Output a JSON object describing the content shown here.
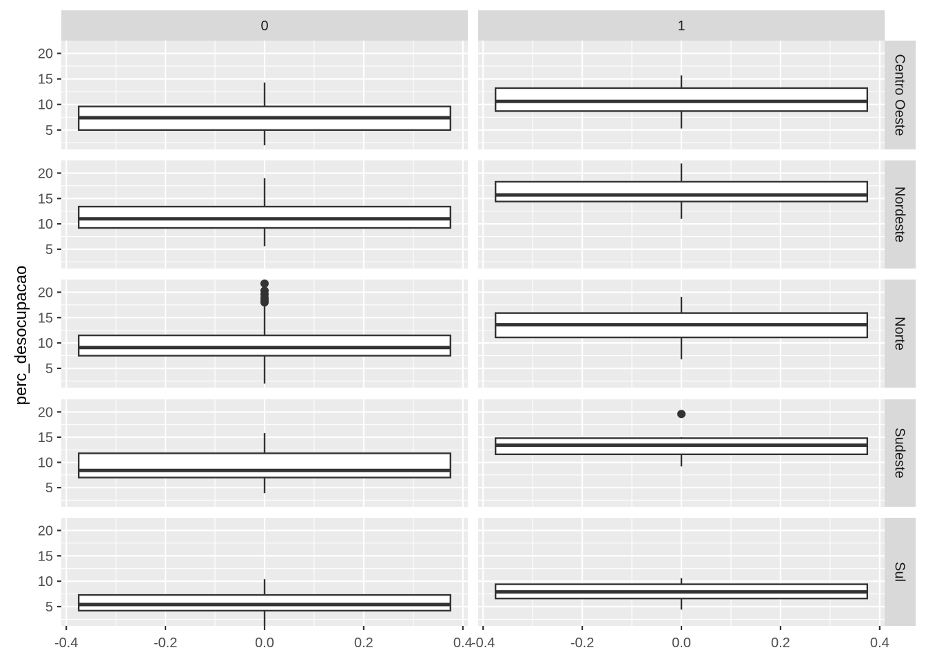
{
  "chart_data": {
    "type": "boxplot",
    "ylabel": "perc_desocupacao",
    "xlim": [
      -0.41,
      0.41
    ],
    "ylim": [
      1.2,
      22.5
    ],
    "x_ticks": [
      -0.4,
      -0.2,
      0.0,
      0.2,
      0.4
    ],
    "x_tick_labels": [
      "-0.4",
      "-0.2",
      "0.0",
      "0.2",
      "0.4"
    ],
    "y_ticks": [
      5,
      10,
      15,
      20
    ],
    "y_tick_labels": [
      "5",
      "10",
      "15",
      "20"
    ],
    "box_x_range": [
      -0.375,
      0.375
    ],
    "grid": true,
    "facet_columns": [
      "0",
      "1"
    ],
    "facet_rows": [
      "Centro Oeste",
      "Nordeste",
      "Norte",
      "Sudeste",
      "Sul"
    ],
    "boxes": [
      {
        "row": "Centro Oeste",
        "col": "0",
        "min": 2.0,
        "q1": 5.0,
        "median": 7.4,
        "q3": 9.6,
        "max": 14.3,
        "outliers": []
      },
      {
        "row": "Centro Oeste",
        "col": "1",
        "min": 5.3,
        "q1": 8.7,
        "median": 10.6,
        "q3": 13.2,
        "max": 15.7,
        "outliers": []
      },
      {
        "row": "Nordeste",
        "col": "0",
        "min": 5.6,
        "q1": 9.2,
        "median": 11.0,
        "q3": 13.4,
        "max": 19.0,
        "outliers": []
      },
      {
        "row": "Nordeste",
        "col": "1",
        "min": 11.0,
        "q1": 14.4,
        "median": 15.7,
        "q3": 18.3,
        "max": 21.9,
        "outliers": []
      },
      {
        "row": "Norte",
        "col": "0",
        "min": 2.0,
        "q1": 7.5,
        "median": 9.1,
        "q3": 11.5,
        "max": 17.5,
        "outliers": [
          18.0,
          18.4,
          18.9,
          19.6,
          20.3,
          21.7
        ]
      },
      {
        "row": "Norte",
        "col": "1",
        "min": 6.8,
        "q1": 11.1,
        "median": 13.6,
        "q3": 15.9,
        "max": 19.1,
        "outliers": []
      },
      {
        "row": "Sudeste",
        "col": "0",
        "min": 3.9,
        "q1": 7.0,
        "median": 8.4,
        "q3": 11.8,
        "max": 15.8,
        "outliers": []
      },
      {
        "row": "Sudeste",
        "col": "1",
        "min": 9.2,
        "q1": 11.6,
        "median": 13.4,
        "q3": 14.8,
        "max": 15.0,
        "outliers": [
          19.6
        ]
      },
      {
        "row": "Sul",
        "col": "0",
        "min": 1.2,
        "q1": 4.2,
        "median": 5.4,
        "q3": 7.3,
        "max": 10.4,
        "outliers": []
      },
      {
        "row": "Sul",
        "col": "1",
        "min": 4.4,
        "q1": 6.6,
        "median": 7.9,
        "q3": 9.4,
        "max": 10.6,
        "outliers": []
      }
    ]
  }
}
